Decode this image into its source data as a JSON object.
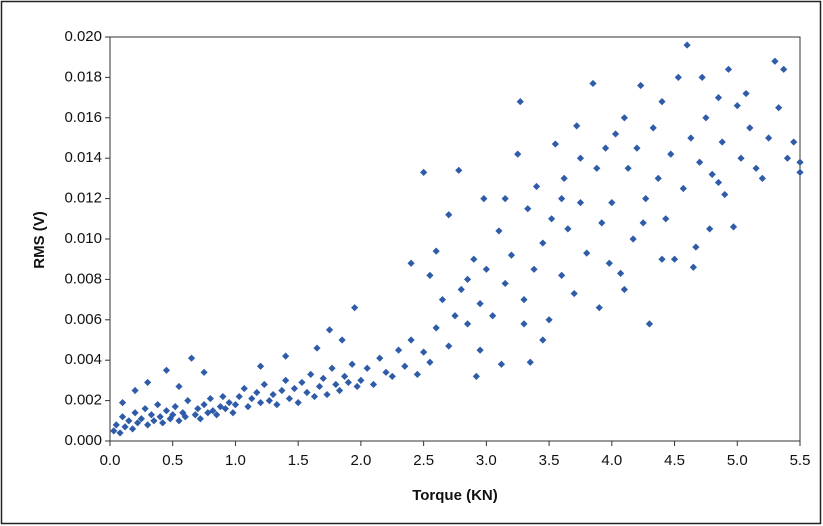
{
  "chart_data": {
    "type": "scatter",
    "x_label": "Torque (KN)",
    "y_label": "RMS (V)",
    "color": "#2f5ca8",
    "xlim": [
      0,
      5.5
    ],
    "ylim": [
      0,
      0.02
    ],
    "xticks": [
      {
        "value": 0,
        "label": "0.0"
      },
      0.5,
      {
        "value": 1,
        "label": "1.0"
      },
      1.5,
      {
        "value": 2,
        "label": "2.0"
      },
      2.5,
      {
        "value": 3,
        "label": "3.0"
      },
      3.5,
      {
        "value": 4,
        "label": "4.0"
      },
      4.5,
      {
        "value": 5,
        "label": "5.0"
      },
      5.5
    ],
    "yticks": [
      {
        "value": 0,
        "label": "0.000"
      },
      0.002,
      0.004,
      0.006,
      0.008,
      {
        "value": 0.01,
        "label": "0.010"
      },
      0.012,
      0.014,
      0.016,
      0.018,
      {
        "value": 0.02,
        "label": "0.020"
      }
    ],
    "grid": false,
    "x": [
      0.03,
      0.05,
      0.08,
      0.1,
      0.12,
      0.15,
      0.18,
      0.2,
      0.22,
      0.25,
      0.28,
      0.3,
      0.33,
      0.35,
      0.38,
      0.4,
      0.42,
      0.45,
      0.48,
      0.5,
      0.52,
      0.55,
      0.58,
      0.6,
      0.62,
      0.65,
      0.68,
      0.7,
      0.72,
      0.75,
      0.78,
      0.8,
      0.82,
      0.85,
      0.88,
      0.9,
      0.92,
      0.95,
      0.98,
      0.45,
      0.3,
      0.55,
      0.1,
      0.2,
      0.75,
      1.0,
      1.03,
      1.07,
      1.1,
      1.13,
      1.17,
      1.2,
      1.23,
      1.27,
      1.3,
      1.33,
      1.37,
      1.4,
      1.43,
      1.47,
      1.5,
      1.53,
      1.57,
      1.6,
      1.63,
      1.67,
      1.7,
      1.73,
      1.77,
      1.8,
      1.83,
      1.87,
      1.9,
      1.93,
      1.97,
      1.65,
      1.75,
      1.4,
      1.2,
      1.95,
      1.85,
      2.0,
      2.05,
      2.1,
      2.15,
      2.2,
      2.25,
      2.3,
      2.35,
      2.4,
      2.45,
      2.5,
      2.5,
      2.55,
      2.55,
      2.6,
      2.65,
      2.7,
      2.75,
      2.78,
      2.8,
      2.85,
      2.9,
      2.92,
      2.95,
      2.98,
      2.4,
      2.6,
      2.7,
      2.85,
      2.95,
      3.0,
      3.05,
      3.1,
      3.12,
      3.15,
      3.2,
      3.25,
      3.27,
      3.3,
      3.33,
      3.35,
      3.38,
      3.4,
      3.45,
      3.5,
      3.52,
      3.55,
      3.6,
      3.62,
      3.65,
      3.7,
      3.72,
      3.75,
      3.8,
      3.85,
      3.88,
      3.9,
      3.92,
      3.95,
      3.98,
      3.45,
      3.6,
      3.75,
      3.15,
      3.3,
      4.0,
      4.03,
      4.07,
      4.1,
      4.13,
      4.17,
      4.2,
      4.23,
      4.27,
      4.3,
      4.33,
      4.37,
      4.4,
      4.43,
      4.47,
      4.5,
      4.53,
      4.57,
      4.6,
      4.63,
      4.67,
      4.7,
      4.72,
      4.75,
      4.78,
      4.8,
      4.85,
      4.88,
      4.9,
      4.93,
      4.97,
      5.0,
      5.03,
      5.07,
      5.1,
      5.15,
      5.2,
      5.25,
      5.3,
      5.33,
      5.37,
      5.4,
      5.45,
      5.5,
      5.5,
      4.65,
      4.4,
      4.1,
      4.25,
      4.85
    ],
    "values": [
      0.0005,
      0.0008,
      0.0004,
      0.0012,
      0.0007,
      0.001,
      0.0006,
      0.0014,
      0.0009,
      0.0011,
      0.0016,
      0.0008,
      0.0013,
      0.001,
      0.0018,
      0.0012,
      0.0009,
      0.0015,
      0.0011,
      0.0013,
      0.0017,
      0.001,
      0.0014,
      0.0012,
      0.002,
      0.0041,
      0.0013,
      0.0016,
      0.0011,
      0.0018,
      0.0014,
      0.0021,
      0.0015,
      0.0013,
      0.0017,
      0.0022,
      0.0016,
      0.0019,
      0.0014,
      0.0035,
      0.0029,
      0.0027,
      0.0019,
      0.0025,
      0.0034,
      0.0018,
      0.0022,
      0.0026,
      0.0017,
      0.0021,
      0.0024,
      0.0019,
      0.0028,
      0.002,
      0.0023,
      0.0018,
      0.0025,
      0.003,
      0.0021,
      0.0026,
      0.0019,
      0.0029,
      0.0024,
      0.0033,
      0.0022,
      0.0027,
      0.0031,
      0.0023,
      0.0036,
      0.0028,
      0.0025,
      0.0032,
      0.0029,
      0.0038,
      0.0027,
      0.0046,
      0.0055,
      0.0042,
      0.0037,
      0.0066,
      0.005,
      0.003,
      0.0036,
      0.0028,
      0.0041,
      0.0034,
      0.0032,
      0.0045,
      0.0037,
      0.005,
      0.0033,
      0.0044,
      0.0133,
      0.0039,
      0.0082,
      0.0056,
      0.007,
      0.0047,
      0.0062,
      0.0134,
      0.0075,
      0.0058,
      0.009,
      0.0032,
      0.0068,
      0.012,
      0.0088,
      0.0094,
      0.0112,
      0.008,
      0.0045,
      0.0085,
      0.0062,
      0.0104,
      0.0038,
      0.0078,
      0.0092,
      0.0142,
      0.0168,
      0.007,
      0.0115,
      0.0039,
      0.0085,
      0.0126,
      0.0098,
      0.006,
      0.011,
      0.0147,
      0.0082,
      0.013,
      0.0105,
      0.0073,
      0.0156,
      0.0118,
      0.0093,
      0.0177,
      0.0135,
      0.0066,
      0.0108,
      0.0145,
      0.0088,
      0.005,
      0.012,
      0.014,
      0.012,
      0.0058,
      0.0118,
      0.0152,
      0.0083,
      0.016,
      0.0135,
      0.01,
      0.0145,
      0.0176,
      0.012,
      0.0058,
      0.0155,
      0.013,
      0.0168,
      0.011,
      0.0142,
      0.009,
      0.018,
      0.0125,
      0.0196,
      0.015,
      0.0096,
      0.0138,
      0.018,
      0.016,
      0.0105,
      0.0132,
      0.017,
      0.0148,
      0.0122,
      0.0184,
      0.0106,
      0.0166,
      0.014,
      0.0172,
      0.0155,
      0.0135,
      0.013,
      0.015,
      0.0188,
      0.0165,
      0.0184,
      0.014,
      0.0148,
      0.0133,
      0.0138,
      0.0086,
      0.009,
      0.0075,
      0.0108,
      0.0128
    ]
  }
}
